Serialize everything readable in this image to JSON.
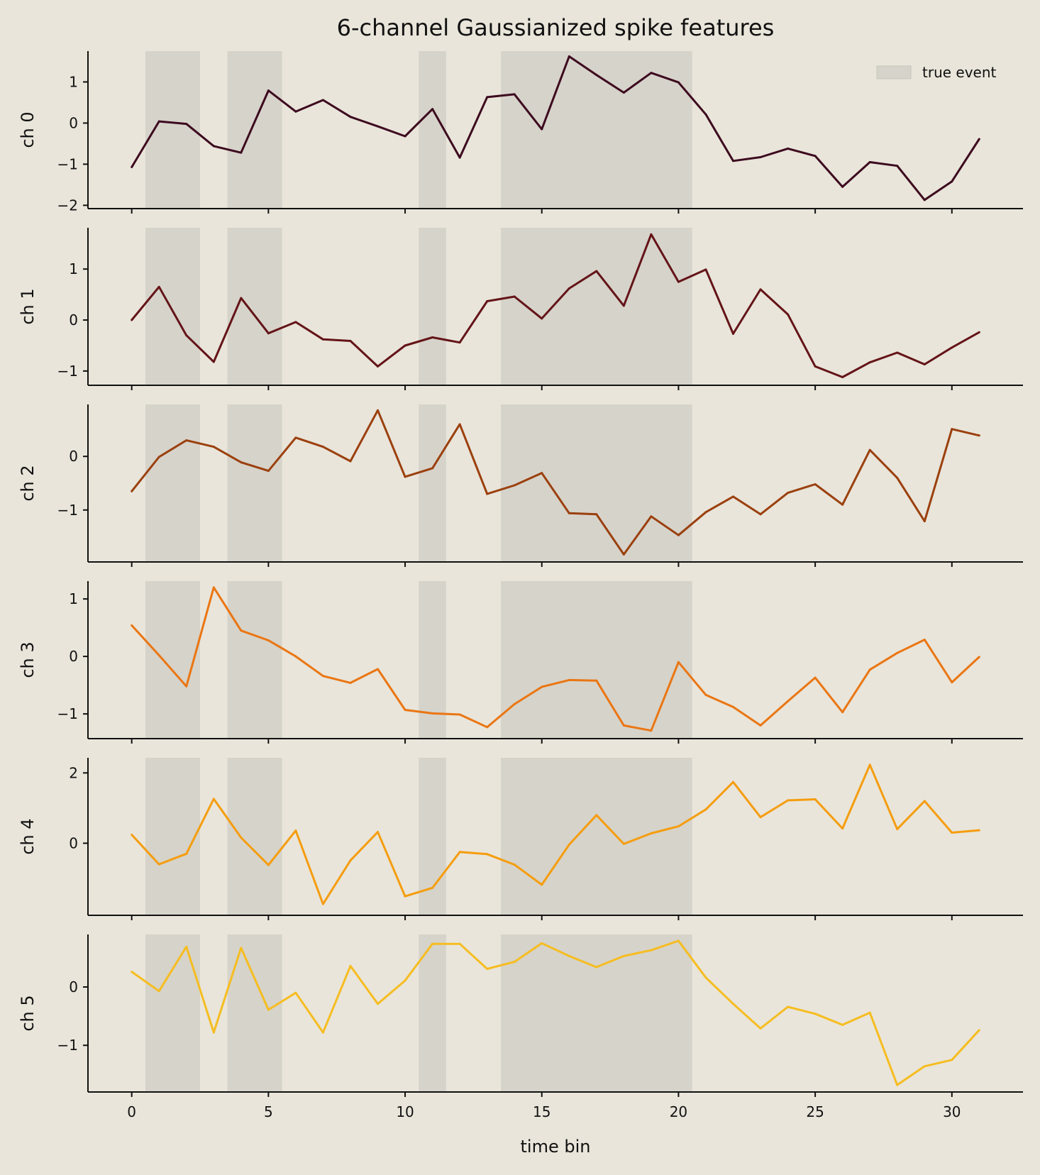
{
  "chart_data": {
    "type": "line",
    "title": "6-channel Gaussianized spike features",
    "xlabel": "time bin",
    "xlim": [
      -1.6,
      32.6
    ],
    "xticks": [
      0,
      5,
      10,
      15,
      20,
      25,
      30
    ],
    "x": [
      0,
      1,
      2,
      3,
      4,
      5,
      6,
      7,
      8,
      9,
      10,
      11,
      12,
      13,
      14,
      15,
      16,
      17,
      18,
      19,
      20,
      21,
      22,
      23,
      24,
      25,
      26,
      27,
      28,
      29,
      30,
      31
    ],
    "event_spans": [
      [
        0.5,
        2.5
      ],
      [
        3.5,
        5.5
      ],
      [
        10.5,
        11.5
      ],
      [
        13.5,
        20.5
      ]
    ],
    "event_color": "#d6d3ca",
    "legend": {
      "label": "true event",
      "placement": "top-right"
    },
    "colors": {
      "background": "#e9e5da",
      "axes": "#111111"
    },
    "series": [
      {
        "ylabel": "ch 0",
        "color": "#3d0a1f",
        "ylim": [
          -2.08,
          1.75
        ],
        "yticks": [
          -2,
          -1,
          0,
          1
        ],
        "values": [
          -1.07,
          0.04,
          -0.02,
          -0.56,
          -0.72,
          0.79,
          0.28,
          0.56,
          0.15,
          -0.08,
          -0.32,
          0.34,
          -0.84,
          0.63,
          0.7,
          -0.15,
          1.62,
          1.17,
          0.74,
          1.22,
          0.99,
          0.21,
          -0.92,
          -0.83,
          -0.62,
          -0.8,
          -1.55,
          -0.95,
          -1.04,
          -1.87,
          -1.42,
          -0.39
        ]
      },
      {
        "ylabel": "ch 1",
        "color": "#641418",
        "ylim": [
          -1.28,
          1.81
        ],
        "yticks": [
          -1,
          0,
          1
        ],
        "values": [
          0.0,
          0.65,
          -0.3,
          -0.82,
          0.43,
          -0.26,
          -0.04,
          -0.38,
          -0.41,
          -0.91,
          -0.5,
          -0.34,
          -0.44,
          0.37,
          0.46,
          0.03,
          0.62,
          0.96,
          0.28,
          1.68,
          0.75,
          0.99,
          -0.27,
          0.6,
          0.11,
          -0.91,
          -1.12,
          -0.83,
          -0.64,
          -0.87,
          -0.54,
          -0.24
        ]
      },
      {
        "ylabel": "ch 2",
        "color": "#9b400e",
        "ylim": [
          -1.97,
          0.97
        ],
        "yticks": [
          -1,
          0
        ],
        "values": [
          -0.65,
          -0.01,
          0.3,
          0.18,
          -0.11,
          -0.27,
          0.35,
          0.18,
          -0.09,
          0.86,
          -0.38,
          -0.22,
          0.6,
          -0.7,
          -0.54,
          -0.31,
          -1.06,
          -1.08,
          -1.83,
          -1.12,
          -1.47,
          -1.04,
          -0.75,
          -1.08,
          -0.68,
          -0.52,
          -0.9,
          0.12,
          -0.4,
          -1.21,
          0.51,
          0.39
        ]
      },
      {
        "ylabel": "ch 3",
        "color": "#ea7613",
        "ylim": [
          -1.43,
          1.31
        ],
        "yticks": [
          -1,
          0,
          1
        ],
        "values": [
          0.54,
          0.02,
          -0.52,
          1.2,
          0.45,
          0.28,
          0.0,
          -0.34,
          -0.46,
          -0.22,
          -0.93,
          -0.99,
          -1.01,
          -1.23,
          -0.83,
          -0.53,
          -0.41,
          -0.42,
          -1.2,
          -1.29,
          -0.1,
          -0.67,
          -0.88,
          -1.2,
          -0.78,
          -0.37,
          -0.97,
          -0.23,
          0.06,
          0.29,
          -0.45,
          -0.01
        ]
      },
      {
        "ylabel": "ch 4",
        "color": "#f59d0f",
        "ylim": [
          -2.05,
          2.43
        ],
        "yticks": [
          0,
          2
        ],
        "values": [
          0.24,
          -0.6,
          -0.3,
          1.26,
          0.16,
          -0.62,
          0.36,
          -1.73,
          -0.49,
          0.32,
          -1.51,
          -1.27,
          -0.25,
          -0.31,
          -0.61,
          -1.18,
          -0.04,
          0.8,
          -0.02,
          0.28,
          0.48,
          0.96,
          1.74,
          0.74,
          1.22,
          1.25,
          0.42,
          2.23,
          0.4,
          1.2,
          0.3,
          0.37
        ]
      },
      {
        "ylabel": "ch 5",
        "color": "#f6bd21",
        "ylim": [
          -1.8,
          0.9
        ],
        "yticks": [
          -1,
          0
        ],
        "values": [
          0.26,
          -0.07,
          0.69,
          -0.78,
          0.67,
          -0.39,
          -0.1,
          -0.78,
          0.36,
          -0.29,
          0.11,
          0.74,
          0.74,
          0.31,
          0.43,
          0.75,
          0.53,
          0.34,
          0.53,
          0.63,
          0.79,
          0.16,
          -0.29,
          -0.71,
          -0.34,
          -0.46,
          -0.65,
          -0.44,
          -1.68,
          -1.36,
          -1.25,
          -0.74
        ]
      }
    ]
  }
}
